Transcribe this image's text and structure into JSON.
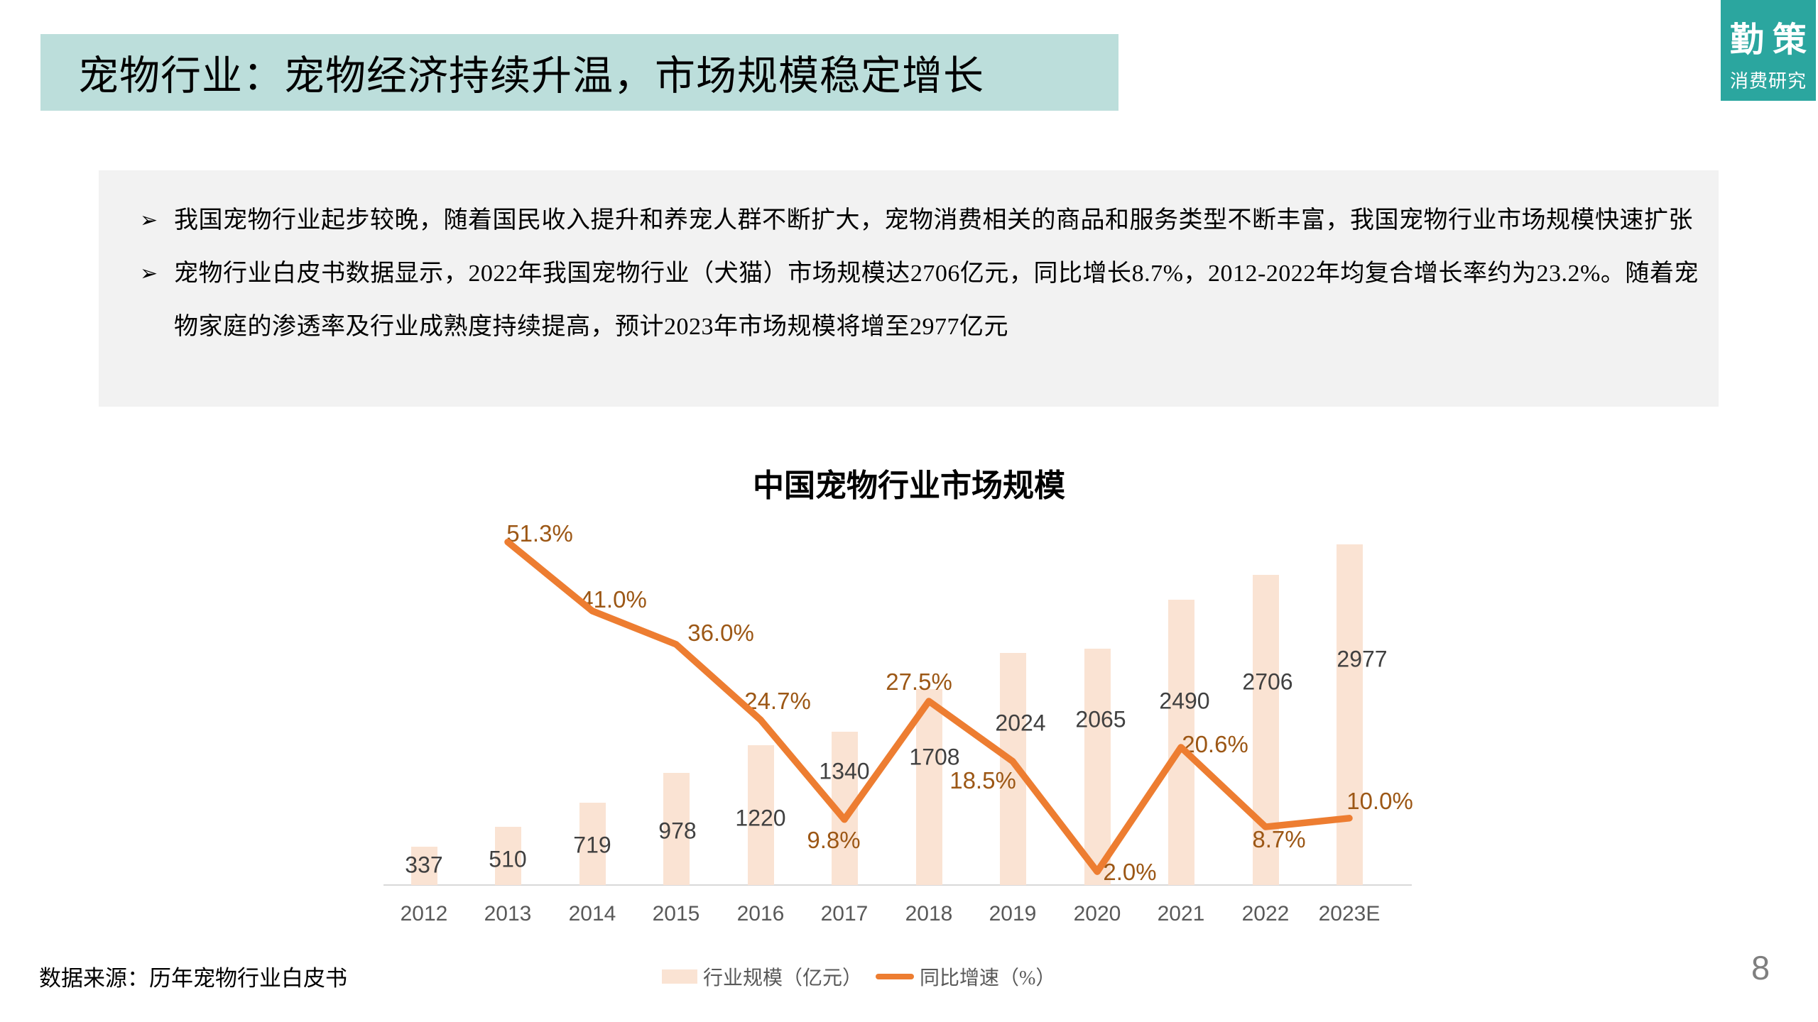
{
  "slide": {
    "title": "宠物行业：宠物经济持续升温，市场规模稳定增长",
    "source_note": "数据来源：历年宠物行业白皮书",
    "page_number": "8"
  },
  "logo": {
    "brand": "勤策",
    "subtitle": "消费研究"
  },
  "summary": {
    "bullet_marker": "➢",
    "bullets": [
      "我国宠物行业起步较晚，随着国民收入提升和养宠人群不断扩大，宠物消费相关的商品和服务类型不断丰富，我国宠物行业市场规模快速扩张",
      "宠物行业白皮书数据显示，2022年我国宠物行业（犬猫）市场规模达2706亿元，同比增长8.7%，2012-2022年均复合增长率约为23.2%。随着宠物家庭的渗透率及行业成熟度持续提高，预计2023年市场规模将增至2977亿元"
    ]
  },
  "chart_data": {
    "type": "bar+line",
    "title": "中国宠物行业市场规模",
    "categories": [
      "2012",
      "2013",
      "2014",
      "2015",
      "2016",
      "2017",
      "2018",
      "2019",
      "2020",
      "2021",
      "2022",
      "2023E"
    ],
    "series": [
      {
        "name": "行业规模（亿元）",
        "type": "bar",
        "color": "#FAE3D3",
        "values": [
          337,
          510,
          719,
          978,
          1220,
          1340,
          1708,
          2024,
          2065,
          2490,
          2706,
          2977
        ],
        "value_labels": [
          "337",
          "510",
          "719",
          "978",
          "1220",
          "1340",
          "1708",
          "2024",
          "2065",
          "2490",
          "2706",
          "2977"
        ]
      },
      {
        "name": "同比增速（%）",
        "type": "line",
        "color": "#ED7D31",
        "values": [
          null,
          51.3,
          41.0,
          36.0,
          24.7,
          9.8,
          27.5,
          18.5,
          2.0,
          20.6,
          8.7,
          10.0
        ],
        "value_labels": [
          null,
          "51.3%",
          "41.0%",
          "36.0%",
          "24.7%",
          "9.8%",
          "27.5%",
          "18.5%",
          "2.0%",
          "20.6%",
          "8.7%",
          "10.0%"
        ]
      }
    ],
    "legend_position": "bottom-center",
    "gridlines": false,
    "y_axis_hidden": true,
    "baseline_pct_zero_aligned": true
  },
  "colors": {
    "title_bar_bg": "#BCDEDB",
    "logo_bg": "#2BA69F",
    "summary_box_bg": "#F2F2F2",
    "bar_fill": "#FAE3D3",
    "line_stroke": "#ED7D31",
    "pct_label": "#9C5715",
    "value_label": "#404040",
    "axis_label": "#595959",
    "axis_line": "#D9D9D9",
    "page_number": "#7F7F7F"
  }
}
